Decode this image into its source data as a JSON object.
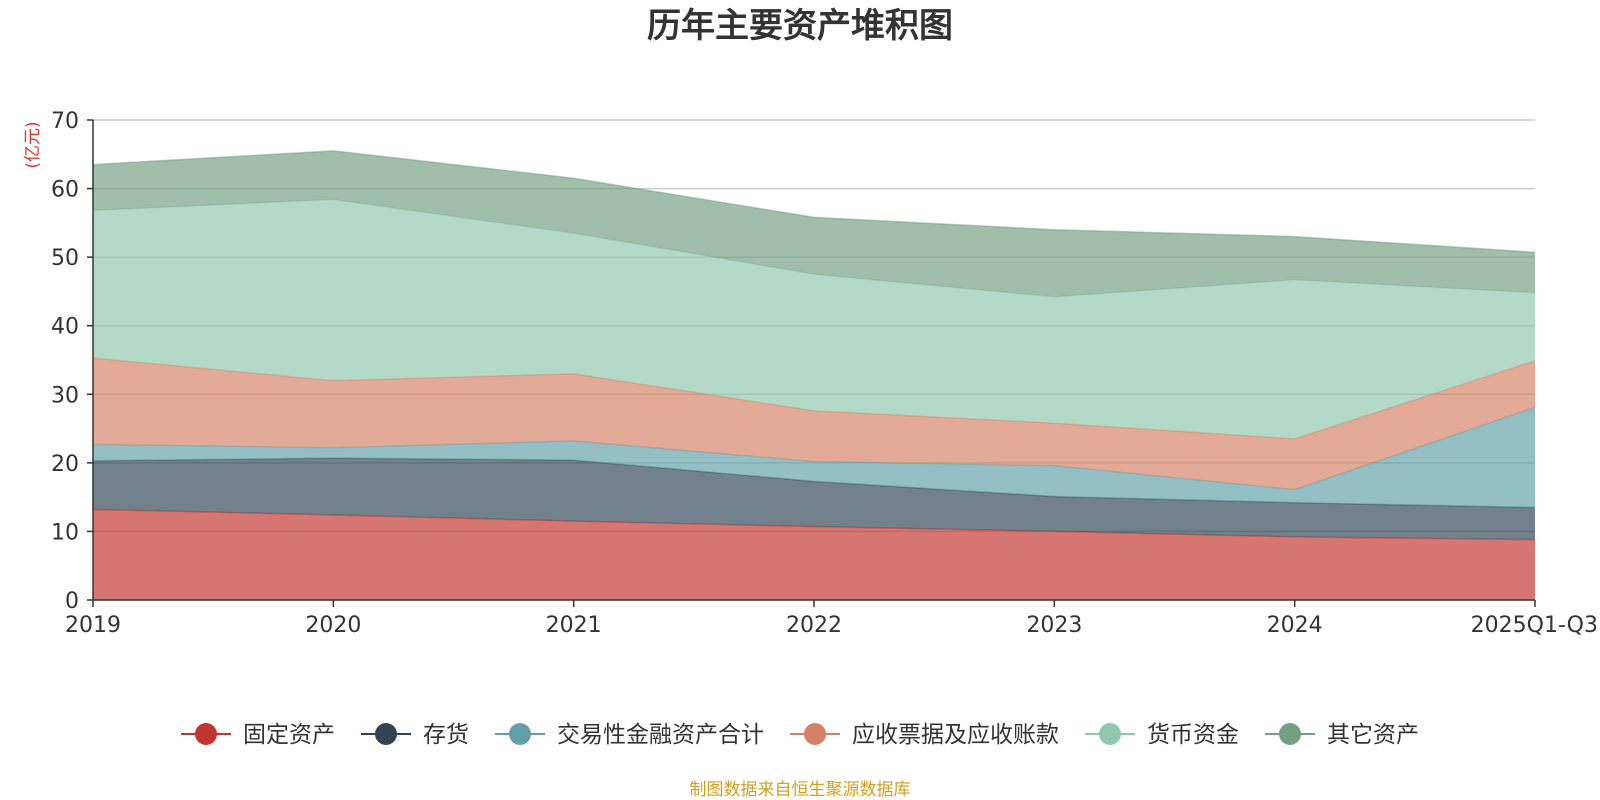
{
  "chart_data": {
    "type": "area",
    "stacked": true,
    "title": "历年主要资产堆积图",
    "ylabel": "(亿元)",
    "xlabel": "",
    "ylim": [
      0,
      70
    ],
    "yticks": [
      0,
      10,
      20,
      30,
      40,
      50,
      60,
      70
    ],
    "categories": [
      "2019",
      "2020",
      "2021",
      "2022",
      "2023",
      "2024",
      "2025Q1-Q3"
    ],
    "series": [
      {
        "name": "固定资产",
        "color": "#c23531",
        "values": [
          13.2,
          12.4,
          11.5,
          10.7,
          10.0,
          9.2,
          8.8
        ]
      },
      {
        "name": "存货",
        "color": "#2f4554",
        "values": [
          7.1,
          8.3,
          8.9,
          6.6,
          5.1,
          5.0,
          4.7
        ]
      },
      {
        "name": "交易性金融资产合计",
        "color": "#61a0a8",
        "values": [
          2.4,
          1.5,
          2.8,
          2.9,
          4.5,
          1.9,
          14.6
        ]
      },
      {
        "name": "应收票据及应收账款",
        "color": "#d48265",
        "values": [
          12.6,
          9.8,
          9.8,
          7.4,
          6.2,
          7.4,
          6.8
        ]
      },
      {
        "name": "货币资金",
        "color": "#91c7ae",
        "values": [
          21.5,
          26.4,
          20.5,
          19.9,
          18.4,
          23.2,
          9.9
        ]
      },
      {
        "name": "其它资产",
        "color": "#749f83",
        "values": [
          6.7,
          7.1,
          8.0,
          8.3,
          9.8,
          6.3,
          5.9
        ]
      }
    ],
    "legend_position": "bottom",
    "grid": true
  },
  "source_note": "制图数据来自恒生聚源数据库"
}
